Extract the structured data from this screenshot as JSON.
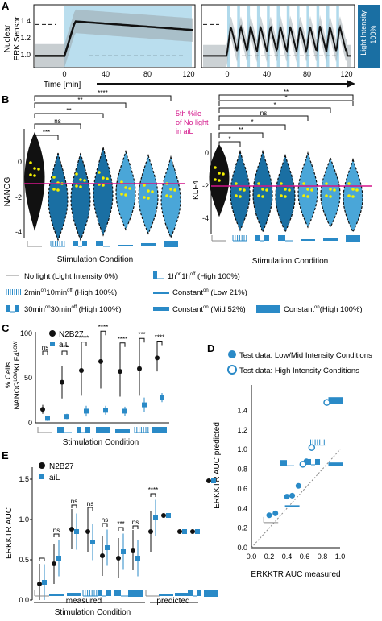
{
  "panel_labels": {
    "a": "A",
    "b": "B",
    "c": "C",
    "d": "D",
    "e": "E"
  },
  "colors": {
    "light_blue": "#a9d6ea",
    "mid_blue": "#4aa6d8",
    "dark_blue": "#1a6fa3",
    "navy": "#17406b",
    "accent": "#2a8ac7",
    "pink_line": "#d4148a",
    "yellow_dot": "#f4f000",
    "black": "#111111"
  },
  "panel_a": {
    "ylabel_line1": "Nuclear",
    "ylabel_line2": "ERK Sensor",
    "xlabel": "Time [min]",
    "side_label_line1": "Light Intensity",
    "side_label_line2": "100%",
    "chart_data": [
      {
        "type": "line",
        "ylim": [
          0.85,
          1.65
        ],
        "y_ticks": [
          "1.0",
          "1.2",
          "1.4"
        ],
        "x_ticks": [
          "0",
          "40",
          "80",
          "120"
        ],
        "pattern": "constant light"
      },
      {
        "type": "line",
        "ylim": [
          0.85,
          1.65
        ],
        "y_ticks": [],
        "x_ticks": [
          "0",
          "40",
          "80",
          "120"
        ],
        "pattern": "pulsed light"
      }
    ]
  },
  "panel_b": {
    "annotation_line1": "5th %ile",
    "annotation_line2": "of No light",
    "annotation_line3": "in aiL",
    "xlabel": "Stimulation Condition",
    "chart_data": [
      {
        "type": "violin",
        "ylabel": "NANOG",
        "y_ticks": [
          "0",
          "-2",
          "-4"
        ],
        "significance": [
          "***",
          "ns",
          "**",
          "**",
          "****"
        ]
      },
      {
        "type": "violin",
        "ylabel": "KLF4",
        "y_ticks": [
          "0",
          "-2",
          "-4"
        ],
        "significance": [
          "*",
          "**",
          "*",
          "ns",
          "*",
          "*",
          "**"
        ]
      }
    ]
  },
  "legend": {
    "no_light": "No light (Light Intensity 0%)",
    "one_h": "1h",
    "one_h_on": "on",
    "one_h_mid": "1h",
    "one_h_off": "off",
    "one_h_tail": " (High 100%)",
    "two_min": "2min",
    "two_min_on": "on",
    "ten_min": "10min",
    "ten_min_off": "off",
    "two_min_tail": " (High 100%)",
    "const_low": "Constant",
    "const_low_on": "on",
    "const_low_tail": " (Low 21%)",
    "thirty_min": "30min",
    "thirty_min_on": "on",
    "thirty_min_b": "30min",
    "thirty_min_off": "off",
    "thirty_min_tail": " (High 100%)",
    "const_mid": "Constant",
    "const_mid_on": "on",
    "const_mid_tail": " (Mid 52%)",
    "const_high": "Constant",
    "const_high_on": "on",
    "const_high_tail": "(High 100%)"
  },
  "panel_c": {
    "ylabel_main": "% Cells",
    "ylabel_sub_a": "NANOG",
    "ylabel_sub_a_sup": "LOW",
    "ylabel_sub_b": "KLF4",
    "ylabel_sub_b_sup": "LOW",
    "xlabel": "Stimulation Condition",
    "chart_data": {
      "type": "scatter",
      "ylim": [
        0,
        100
      ],
      "y_ticks": [
        "0",
        "50",
        "100"
      ],
      "series": [
        {
          "name": "N2B27",
          "values": [
            15,
            45,
            58,
            68,
            57,
            60,
            72
          ]
        },
        {
          "name": "aiL",
          "values": [
            5,
            7,
            13,
            14,
            13,
            20,
            28
          ]
        }
      ],
      "significance": [
        "ns",
        "***",
        "****",
        "****",
        "****",
        "***",
        "****"
      ]
    }
  },
  "panel_d": {
    "legend_filled": "Test data: Low/Mid Intensity Conditions",
    "legend_open": "Test data: High Intensity Conditions",
    "xlabel": "ERKKTR AUC measured",
    "ylabel": "ERKKTR AUC predicted",
    "chart_data": {
      "type": "scatter",
      "xlim": [
        0.0,
        1.0
      ],
      "ylim": [
        0.0,
        1.6
      ],
      "x_ticks": [
        "0.0",
        "0.2",
        "0.4",
        "0.6",
        "0.8",
        "1.0"
      ],
      "y_ticks": [
        "0.0",
        "0.2",
        "0.4",
        "0.6",
        "0.8",
        "1.0",
        "1.2",
        "1.4"
      ],
      "series": [
        {
          "name": "Test data: Low/Mid Intensity Conditions",
          "x": [
            0.2,
            0.27,
            0.4,
            0.46,
            0.53,
            0.62
          ],
          "y": [
            0.33,
            0.35,
            0.52,
            0.53,
            0.63,
            0.88
          ]
        },
        {
          "name": "Test data: High Intensity Conditions",
          "x": [
            0.58,
            0.68,
            0.85
          ],
          "y": [
            0.85,
            1.02,
            1.48
          ]
        }
      ]
    }
  },
  "panel_e": {
    "ylabel": "ERKKTR AUC",
    "xlabel": "Stimulation Condition",
    "measured_label": "measured",
    "predicted_label": "predicted",
    "chart_data": {
      "type": "scatter",
      "ylim": [
        0.0,
        1.6
      ],
      "y_ticks": [
        "0.0",
        "0.5",
        "1.0",
        "1.5"
      ],
      "series": [
        {
          "name": "N2B27",
          "values": [
            0.2,
            0.45,
            0.88,
            0.85,
            0.55,
            0.52,
            0.62,
            0.85,
            1.05,
            0.85,
            0.85,
            1.48
          ]
        },
        {
          "name": "aiL",
          "values": [
            0.22,
            0.52,
            0.85,
            0.72,
            0.65,
            0.6,
            0.52,
            1.02,
            1.05,
            0.85,
            0.85,
            1.48
          ]
        }
      ],
      "significance": [
        "ns",
        "ns",
        "ns",
        "ns",
        "***",
        "ns",
        "****"
      ]
    }
  }
}
